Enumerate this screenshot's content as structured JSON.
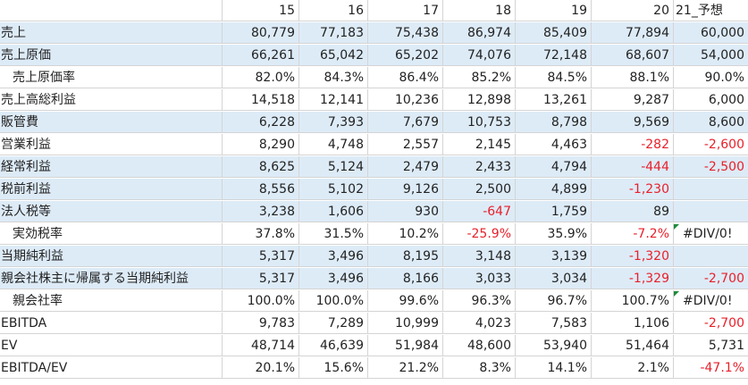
{
  "header": {
    "c15": "15",
    "c16": "16",
    "c17": "17",
    "c18": "18",
    "c19": "19",
    "c20": "20",
    "c21": "21_予想"
  },
  "rows": [
    {
      "label": "売上",
      "c15": "80,779",
      "c16": "77,183",
      "c17": "75,438",
      "c18": "86,974",
      "c19": "85,409",
      "c20": "77,894",
      "c21": "60,000"
    },
    {
      "label": "売上原価",
      "c15": "66,261",
      "c16": "65,042",
      "c17": "65,202",
      "c18": "74,076",
      "c19": "72,148",
      "c20": "68,607",
      "c21": "54,000"
    },
    {
      "label": "売上原価率",
      "c15": "82.0%",
      "c16": "84.3%",
      "c17": "86.4%",
      "c18": "85.2%",
      "c19": "84.5%",
      "c20": "88.1%",
      "c21": "90.0%"
    },
    {
      "label": "売上高総利益",
      "c15": "14,518",
      "c16": "12,141",
      "c17": "10,236",
      "c18": "12,898",
      "c19": "13,261",
      "c20": "9,287",
      "c21": "6,000"
    },
    {
      "label": "販管費",
      "c15": "6,228",
      "c16": "7,393",
      "c17": "7,679",
      "c18": "10,753",
      "c19": "8,798",
      "c20": "9,569",
      "c21": "8,600"
    },
    {
      "label": "営業利益",
      "c15": "8,290",
      "c16": "4,748",
      "c17": "2,557",
      "c18": "2,145",
      "c19": "4,463",
      "c20": "-282",
      "c21": "-2,600"
    },
    {
      "label": "経常利益",
      "c15": "8,625",
      "c16": "5,124",
      "c17": "2,479",
      "c18": "2,433",
      "c19": "4,794",
      "c20": "-444",
      "c21": "-2,500"
    },
    {
      "label": "税前利益",
      "c15": "8,556",
      "c16": "5,102",
      "c17": "9,126",
      "c18": "2,500",
      "c19": "4,899",
      "c20": "-1,230",
      "c21": ""
    },
    {
      "label": "法人税等",
      "c15": "3,238",
      "c16": "1,606",
      "c17": "930",
      "c18": "-647",
      "c19": "1,759",
      "c20": "89",
      "c21": ""
    },
    {
      "label": "実効税率",
      "c15": "37.8%",
      "c16": "31.5%",
      "c17": "10.2%",
      "c18": "-25.9%",
      "c19": "35.9%",
      "c20": "-7.2%",
      "c21": "#DIV/0!"
    },
    {
      "label": "当期純利益",
      "c15": "5,317",
      "c16": "3,496",
      "c17": "8,195",
      "c18": "3,148",
      "c19": "3,139",
      "c20": "-1,320",
      "c21": ""
    },
    {
      "label": "親会社株主に帰属する当期純利益",
      "c15": "5,317",
      "c16": "3,496",
      "c17": "8,166",
      "c18": "3,033",
      "c19": "3,034",
      "c20": "-1,329",
      "c21": "-2,700"
    },
    {
      "label": "親会社率",
      "c15": "100.0%",
      "c16": "100.0%",
      "c17": "99.6%",
      "c18": "96.3%",
      "c19": "96.7%",
      "c20": "100.7%",
      "c21": "#DIV/0!"
    },
    {
      "label": "EBITDA",
      "c15": "9,783",
      "c16": "7,289",
      "c17": "10,999",
      "c18": "4,023",
      "c19": "7,583",
      "c20": "1,106",
      "c21": "-2,700"
    },
    {
      "label": "EV",
      "c15": "48,714",
      "c16": "46,639",
      "c17": "51,984",
      "c18": "48,600",
      "c19": "53,940",
      "c20": "51,464",
      "c21": "5,731"
    },
    {
      "label": "EBITDA/EV",
      "c15": "20.1%",
      "c16": "15.6%",
      "c17": "21.2%",
      "c18": "8.3%",
      "c19": "14.1%",
      "c20": "2.1%",
      "c21": "-47.1%"
    }
  ],
  "colors": {
    "band": "#ddebf7",
    "negative": "#e8202a",
    "grid": "#d4d4d4",
    "error_flag": "#1f8a3c"
  }
}
